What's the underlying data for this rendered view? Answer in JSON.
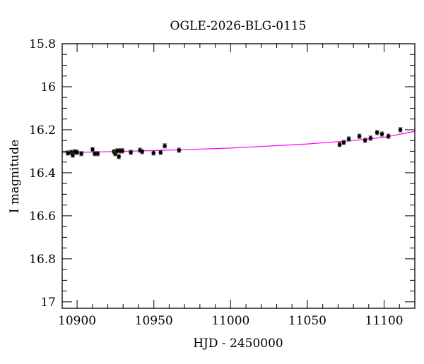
{
  "chart_data": {
    "type": "scatter",
    "title": "OGLE-2026-BLG-0115",
    "xlabel": "HJD - 2450000",
    "ylabel": "I magnitude",
    "xlim": [
      10890.3,
      11120
    ],
    "ylim": [
      17.03,
      15.8
    ],
    "y_inverted": true,
    "grid": false,
    "xticks": [
      10900,
      10950,
      11000,
      11050,
      11100
    ],
    "yticks": [
      15.8,
      16,
      16.2,
      16.4,
      16.6,
      16.8,
      17
    ],
    "ytick_labels": [
      "15.8",
      "16",
      "16.2",
      "16.4",
      "16.6",
      "16.8",
      "17"
    ],
    "points": {
      "x": [
        10894,
        10896.3,
        10897.2,
        10898.6,
        10900,
        10902.8,
        10910.1,
        10911.5,
        10913.4,
        10924,
        10924.9,
        10926.3,
        10927.2,
        10928.1,
        10929.5,
        10935,
        10941,
        10942.4,
        10949.8,
        10954.4,
        10957.1,
        10966.4,
        11071,
        11073.7,
        11077,
        11083.9,
        11087.6,
        11091.2,
        11095.4,
        11098.6,
        11102.8,
        11110.6
      ],
      "y": [
        16.308,
        16.305,
        16.318,
        16.302,
        16.305,
        16.311,
        16.292,
        16.311,
        16.311,
        16.302,
        16.311,
        16.298,
        16.325,
        16.298,
        16.298,
        16.305,
        16.295,
        16.302,
        16.308,
        16.305,
        16.275,
        16.295,
        16.269,
        16.259,
        16.243,
        16.23,
        16.249,
        16.239,
        16.213,
        16.22,
        16.23,
        16.2
      ],
      "err": 0.01,
      "color": "#000000"
    },
    "model": {
      "x": [
        10890.3,
        10950,
        11000,
        11050,
        11080,
        11100,
        11120
      ],
      "y": [
        16.307,
        16.297,
        16.285,
        16.266,
        16.25,
        16.235,
        16.207
      ],
      "color": "#ff00ff"
    }
  }
}
